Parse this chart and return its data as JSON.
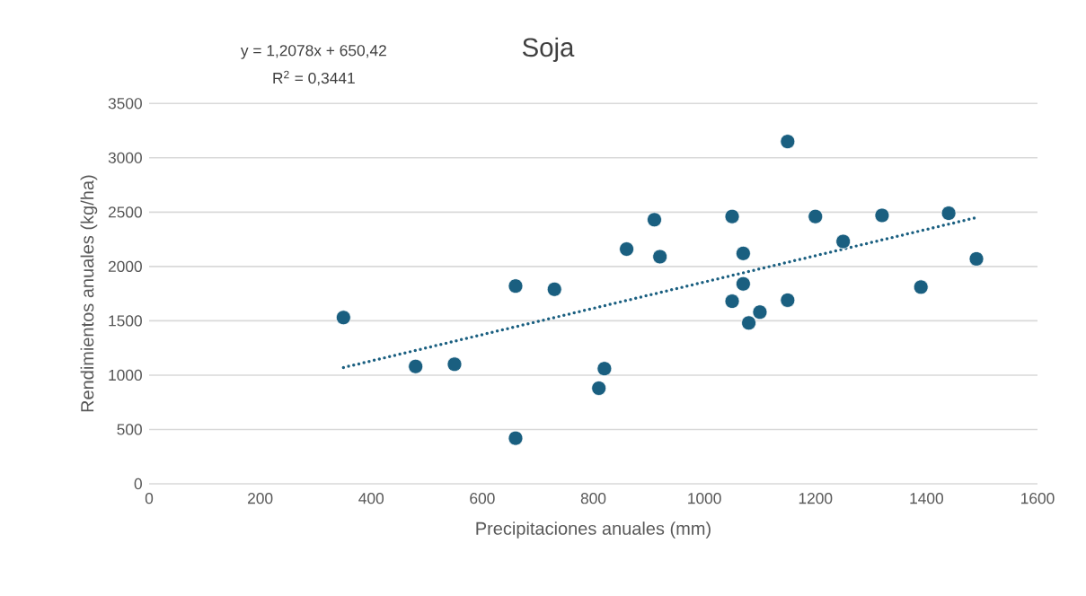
{
  "chart_data": {
    "type": "scatter",
    "title": "Soja",
    "xlabel": "Precipitaciones anuales (mm)",
    "ylabel": "Rendimientos anuales (kg/ha)",
    "annotations": [
      "y = 1,2078x + 650,42",
      "R$^{2}$ = 0,3441"
    ],
    "xlim": [
      0,
      1600
    ],
    "ylim": [
      0,
      3500
    ],
    "xticks": [
      0,
      200,
      400,
      600,
      800,
      1000,
      1200,
      1400,
      1600
    ],
    "yticks": [
      0,
      500,
      1000,
      1500,
      2000,
      2500,
      3000,
      3500
    ],
    "grid": "y",
    "series": [
      {
        "color": "#1a5f80",
        "marker": "circle",
        "x": [
          350,
          480,
          550,
          660,
          730,
          660,
          1150,
          910,
          860,
          920,
          1050,
          1200,
          1320,
          1440,
          1250,
          1070,
          1490,
          1070,
          1050,
          1150,
          1390,
          1100,
          1080,
          820,
          810
        ],
        "values": [
          1530,
          1080,
          1100,
          1820,
          1790,
          420,
          3150,
          2430,
          2160,
          2090,
          2460,
          2460,
          2470,
          2490,
          2230,
          2120,
          2070,
          1840,
          1680,
          1690,
          1810,
          1580,
          1480,
          1060,
          880
        ]
      },
      {
        "type": "line",
        "color": "#1a5f80",
        "marker": "none",
        "line_style": "dotted",
        "x": [
          350,
          1490
        ],
        "values": [
          1070,
          2450
        ]
      }
    ]
  }
}
